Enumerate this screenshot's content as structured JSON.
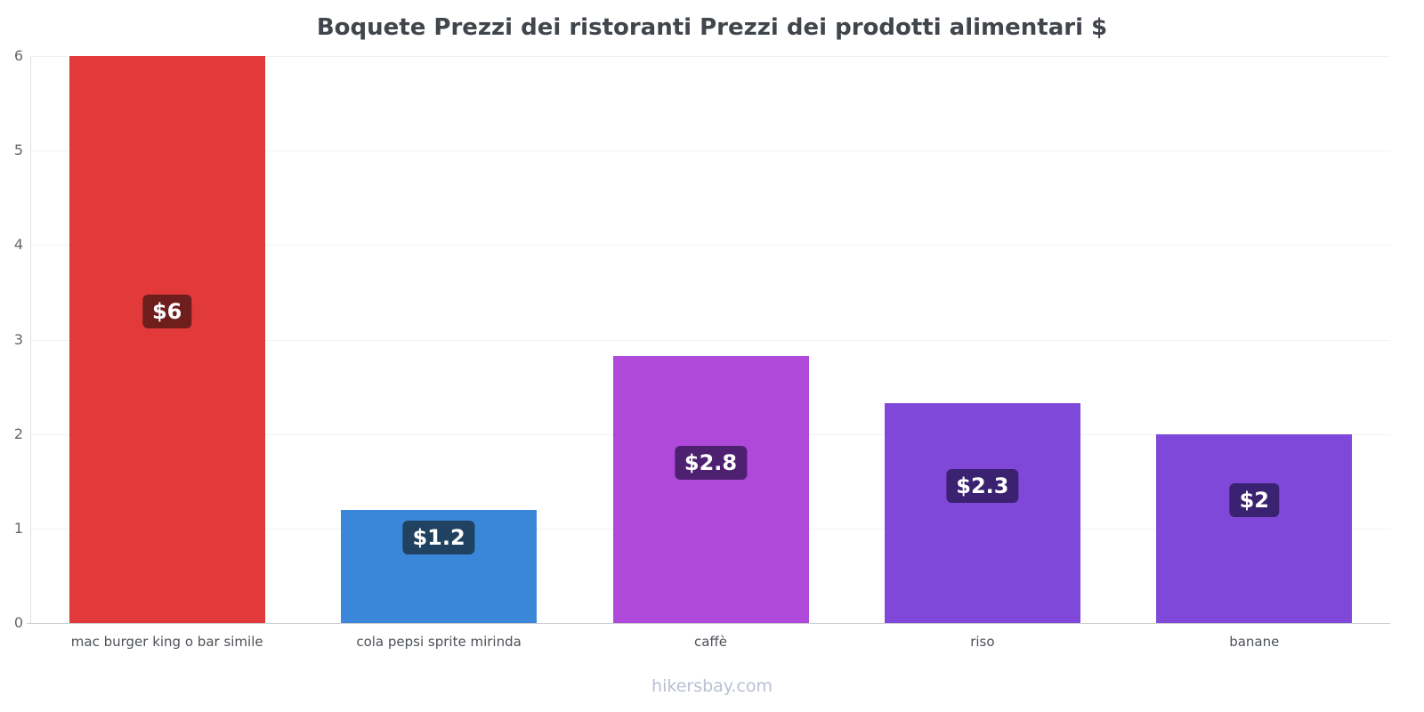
{
  "title": "Boquete Prezzi dei ristoranti Prezzi dei prodotti alimentari $",
  "footer": "hikersbay.com",
  "chart_data": {
    "type": "bar",
    "title": "Boquete Prezzi dei ristoranti Prezzi dei prodotti alimentari $",
    "categories": [
      "mac burger king o bar simile",
      "cola pepsi sprite mirinda",
      "caffè",
      "riso",
      "banane"
    ],
    "values": [
      6,
      1.2,
      2.83,
      2.33,
      2
    ],
    "value_labels": [
      "$6",
      "$1.2",
      "$2.8",
      "$2.3",
      "$2"
    ],
    "label_y_positions": [
      3.3,
      0.9,
      1.7,
      1.45,
      1.3
    ],
    "bar_colors": [
      "#e23a3a",
      "#3a87d9",
      "#ae49da",
      "#7f48d9",
      "#7f48d9"
    ],
    "label_bg_colors": [
      "#6f1e1e",
      "#20415f",
      "#4d2070",
      "#3b2270",
      "#3b2270"
    ],
    "label_text_color": "#ffffff",
    "xlabel": "",
    "ylabel": "",
    "ylim": [
      0,
      6
    ],
    "yticks": [
      0,
      1,
      2,
      3,
      4,
      5,
      6
    ],
    "grid": true,
    "legend": false
  },
  "colors": {
    "title_text": "#41464c",
    "axis_text": "#666666",
    "category_text": "#4d5258",
    "footer_text": "#b9c0d4",
    "gridline": "#f1f1f1",
    "axis_line": "#cccccc",
    "background": "#ffffff"
  }
}
